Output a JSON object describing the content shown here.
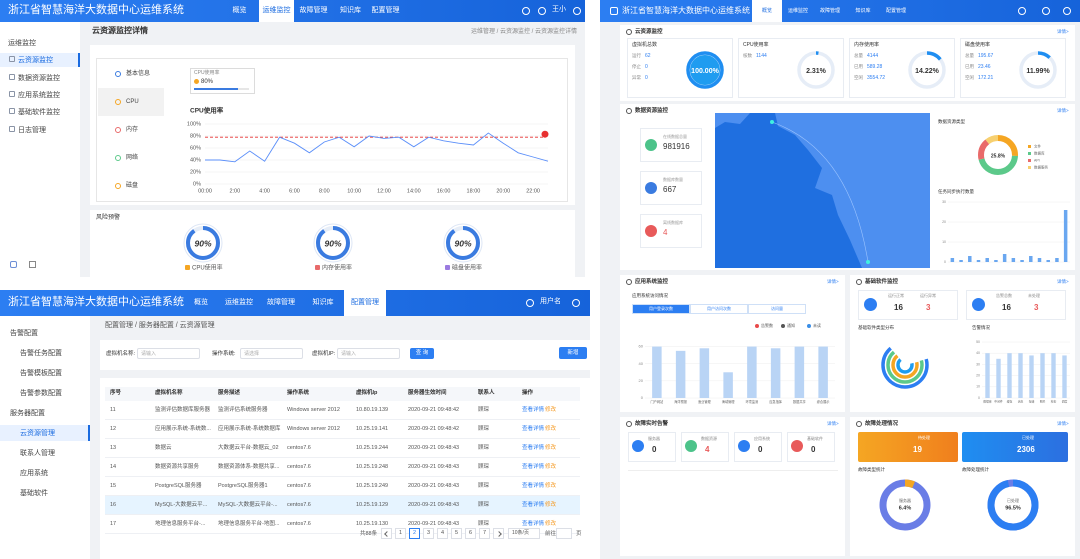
{
  "detail_screen": {
    "header": {
      "title": "浙江省智慧海洋大数据中心运维系统",
      "nav": [
        "概览",
        "运维监控",
        "故障管理",
        "知识库",
        "配置管理"
      ],
      "active_nav": 1,
      "user": "王小"
    },
    "sidebar": {
      "items": [
        "运维监控",
        "云资源监控",
        "数据资源监控",
        "应用系统监控",
        "基础软件监控",
        "日志管理"
      ],
      "active": 1
    },
    "page_title": "云资源监控详情",
    "breadcrumb": "运维管理 / 云资源监控 / 云资源监控详情",
    "tabs": {
      "items": [
        "基本信息",
        "CPU",
        "内存",
        "网络",
        "磁盘"
      ],
      "active": 1
    },
    "cpu_box": {
      "label": "CPU使用率",
      "value": 80,
      "value_label": "80%"
    },
    "chart_data": {
      "type": "line",
      "title": "CPU使用率",
      "categories": [
        "00:00",
        null,
        "2:00",
        null,
        "4:00",
        null,
        "6:00",
        null,
        "8:00",
        null,
        "10:00",
        null,
        "12:00",
        null,
        "14:00",
        null,
        "16:00",
        null,
        "18:00",
        null,
        "20:00",
        null,
        "22:00",
        null
      ],
      "values": [
        40,
        40,
        37,
        55,
        38,
        78,
        68,
        52,
        70,
        78,
        62,
        80,
        76,
        78,
        62,
        78,
        72,
        68,
        65,
        85,
        68,
        52,
        45,
        38
      ],
      "color": "#5b8ff9",
      "threshold": 78,
      "ylim": [
        0,
        100
      ],
      "yticks": [
        {
          "value": 0,
          "label": "0%"
        },
        {
          "value": 20,
          "label": "20%"
        },
        {
          "value": 40,
          "label": "40%"
        },
        {
          "value": 60,
          "label": "60%"
        },
        {
          "value": 80,
          "label": "80%"
        },
        {
          "value": 100,
          "label": "100%"
        }
      ],
      "grid": true
    },
    "risk": {
      "title": "风险预警",
      "gauges": [
        {
          "label": "CPU使用率",
          "value": 90,
          "value_label": "90%"
        },
        {
          "label": "内存使用率",
          "value": 90,
          "value_label": "90%"
        },
        {
          "label": "磁盘使用率",
          "value": 90,
          "value_label": "90%"
        }
      ]
    }
  },
  "config_screen": {
    "header": {
      "title": "浙江省智慧海洋大数据中心运维系统",
      "nav": [
        "概览",
        "运维监控",
        "故障管理",
        "知识库",
        "配置管理"
      ],
      "active_nav": 4,
      "user": "用户名"
    },
    "sidebar": {
      "items": [
        {
          "label": "告警配置",
          "group": true
        },
        {
          "label": "告警任务配置",
          "group": false
        },
        {
          "label": "告警模板配置",
          "group": false
        },
        {
          "label": "告警参数配置",
          "group": false
        },
        {
          "label": "服务器配置",
          "group": true
        },
        {
          "label": "云资源管理",
          "group": false
        },
        {
          "label": "联系人管理",
          "group": false
        },
        {
          "label": "应用系统",
          "group": false
        },
        {
          "label": "基础软件",
          "group": false
        }
      ],
      "active": 5
    },
    "breadcrumb": "配置管理 / 服务器配置 / 云资源管理",
    "filters": [
      {
        "label": "虚拟机名称:",
        "placeholder": "请输入"
      },
      {
        "label": "操作系统:",
        "placeholder": "请选择"
      },
      {
        "label": "虚拟机IP:",
        "placeholder": "请输入"
      }
    ],
    "search": "查 询",
    "add": "新增",
    "table": {
      "columns": [
        "序号",
        "虚拟机名称",
        "服务描述",
        "操作系统",
        "虚拟机Ip",
        "服务器生效时间",
        "联系人",
        "操作"
      ],
      "rows": [
        [
          "11",
          "监测评估数据库服务器",
          "监测评估系统服务器",
          "Windows server 2012",
          "10.80.19.139",
          "2020-09-21 09:48:42",
          "顾琛"
        ],
        [
          "12",
          "应用展示系统-系统数...",
          "应用展示系统-系统数据库",
          "Windows server 2012",
          "10.25.19.141",
          "2020-09-21 09:48:42",
          "顾琛"
        ],
        [
          "13",
          "数据云",
          "大数据云平台-数据云_02",
          "centos7.6",
          "10.25.19.244",
          "2020-09-21 09:48:43",
          "顾琛"
        ],
        [
          "14",
          "数据资源共享服务",
          "数据资源体系-数据共享...",
          "centos7.6",
          "10.25.19.248",
          "2020-09-21 09:48:43",
          "顾琛"
        ],
        [
          "15",
          "PostgreSQL服务器",
          "PostgreSQL服务器1",
          "centos7.6",
          "10.25.19.249",
          "2020-09-21 09:48:43",
          "顾琛"
        ],
        [
          "16",
          "MySQL-大数据云平...",
          "MySQL-大数据云平台-...",
          "centos7.6",
          "10.25.19.129",
          "2020-09-21 09:48:43",
          "顾琛"
        ],
        [
          "17",
          "地理信息服务平台-...",
          "地理信息服务平台-地图...",
          "centos7.6",
          "10.25.19.130",
          "2020-09-21 09:48:43",
          "顾琛"
        ]
      ],
      "actions": [
        "查看详情",
        "修改"
      ],
      "highlight": 5
    },
    "pagination": {
      "total": "共88条",
      "pages": [
        1,
        2,
        3,
        4,
        5,
        6,
        7
      ],
      "active": 1,
      "page_size": "10条/页",
      "goto": "前往",
      "unit": "页"
    }
  },
  "dashboard": {
    "header": {
      "title": "浙江省智慧海洋大数据中心运维系统",
      "nav": [
        "概览",
        "运维监控",
        "故障管理",
        "知识库",
        "配置管理"
      ],
      "active_nav": 0
    },
    "more": "详情>",
    "cloud": {
      "title": "云资源监控",
      "cards": [
        {
          "title": "虚拟机总数",
          "stats": [
            {
              "label": "运行",
              "value": 62
            },
            {
              "label": "停止",
              "value": 0
            },
            {
              "label": "异常",
              "value": 0
            }
          ],
          "ring": {
            "value": 100,
            "value_label": "100.00%"
          }
        },
        {
          "title": "CPU使用率",
          "stats": [
            {
              "label": "核数",
              "value": 1144
            }
          ],
          "ring": {
            "value": 2.31,
            "value_label": "2.31%"
          }
        },
        {
          "title": "内存使用率",
          "stats": [
            {
              "label": "总量",
              "value": 4144
            },
            {
              "label": "已用",
              "value": 589.28
            },
            {
              "label": "空闲",
              "value": 3554.72
            }
          ],
          "ring": {
            "value": 14.22,
            "value_label": "14.22%"
          }
        },
        {
          "title": "磁盘使用率",
          "stats": [
            {
              "label": "总量",
              "value": 195.67
            },
            {
              "label": "已用",
              "value": 23.46
            },
            {
              "label": "空闲",
              "value": 172.21
            }
          ],
          "ring": {
            "value": 11.99,
            "value_label": "11.99%"
          }
        }
      ]
    },
    "data": {
      "title": "数据资源监控",
      "stats": [
        {
          "label": "在线数据总量",
          "value": 981916
        },
        {
          "label": "数据库数量",
          "value": 667
        },
        {
          "label": "离线数据库",
          "value": 4
        }
      ],
      "type_chart": {
        "type": "pie",
        "title": "数据资源类型",
        "center_label": "25.8%",
        "categories": [
          "文件",
          "数据库",
          "API",
          "数据服务"
        ],
        "values": [
          25.8,
          45.2,
          18,
          11
        ],
        "colors": [
          "#f5a623",
          "#5cc98a",
          "#e96a6a",
          "#f7d070"
        ]
      },
      "sync_chart": {
        "type": "bar",
        "title": "任务同步执行数量",
        "values": [
          2,
          1,
          3,
          1,
          2,
          1,
          4,
          2,
          1,
          3,
          2,
          1,
          2,
          26
        ],
        "color": "#6aa7f0",
        "ylim": [
          0,
          30
        ],
        "yticks": [
          0,
          10,
          20,
          30
        ]
      }
    },
    "app": {
      "title": "应用系统监控",
      "subtitle": "应用系统访问情况",
      "tabs": [
        "用户登录次数",
        "用户访问次数",
        "访问量"
      ],
      "legend": [
        {
          "name": "告警数",
          "color": "#e84a4a"
        },
        {
          "name": "通知",
          "color": "#555555"
        },
        {
          "name": "未读",
          "color": "#3a8ee6"
        }
      ],
      "chart_data": {
        "type": "bar",
        "categories": [
          "门户网站",
          "海洋预报",
          "渔业管理",
          "海域管理",
          "环境监测",
          "应急指挥",
          "数据共享",
          "综合展示"
        ],
        "values": [
          60,
          55,
          58,
          30,
          60,
          58,
          60,
          60
        ],
        "color": "#b9d4f5",
        "ylim": [
          0,
          70
        ],
        "yticks": [
          0,
          20,
          40,
          60
        ]
      }
    },
    "soft": {
      "title": "基础软件监控",
      "stats": [
        {
          "label": "运行正常",
          "value": 16
        },
        {
          "label": "运行异常",
          "value": 3
        },
        {
          "label": "告警总数",
          "value": 16
        },
        {
          "label": "未处理",
          "value": 3
        }
      ],
      "donut_title": "基础软件类型分布",
      "chart_title": "告警情况",
      "chart_data": {
        "type": "bar",
        "categories": [
          "数据库",
          "中间件",
          "缓存",
          "消息",
          "存储",
          "网关",
          "检索",
          "调度"
        ],
        "values": [
          40,
          35,
          40,
          40,
          38,
          40,
          40,
          38
        ],
        "color": "#b9d4f5",
        "ylim": [
          0,
          50
        ],
        "yticks": [
          0,
          10,
          20,
          30,
          40,
          50
        ]
      }
    },
    "alarm": {
      "title": "故障实时告警",
      "items": [
        {
          "label": "服务器",
          "value": 0
        },
        {
          "label": "数据资源",
          "value": 4
        },
        {
          "label": "应用系统",
          "value": 0
        },
        {
          "label": "基础软件",
          "value": 0
        }
      ]
    },
    "handling": {
      "title": "故障处理情况",
      "cards": [
        {
          "label": "待处理",
          "value": 19
        },
        {
          "label": "已处理",
          "value": 2306
        }
      ],
      "donuts": [
        {
          "title": "故障类型统计",
          "label": "服务器",
          "value": 6.4,
          "value_label": "6.4%"
        },
        {
          "title": "故障处理统计",
          "label": "已处理",
          "value": 96.5,
          "value_label": "96.5%"
        }
      ]
    }
  }
}
